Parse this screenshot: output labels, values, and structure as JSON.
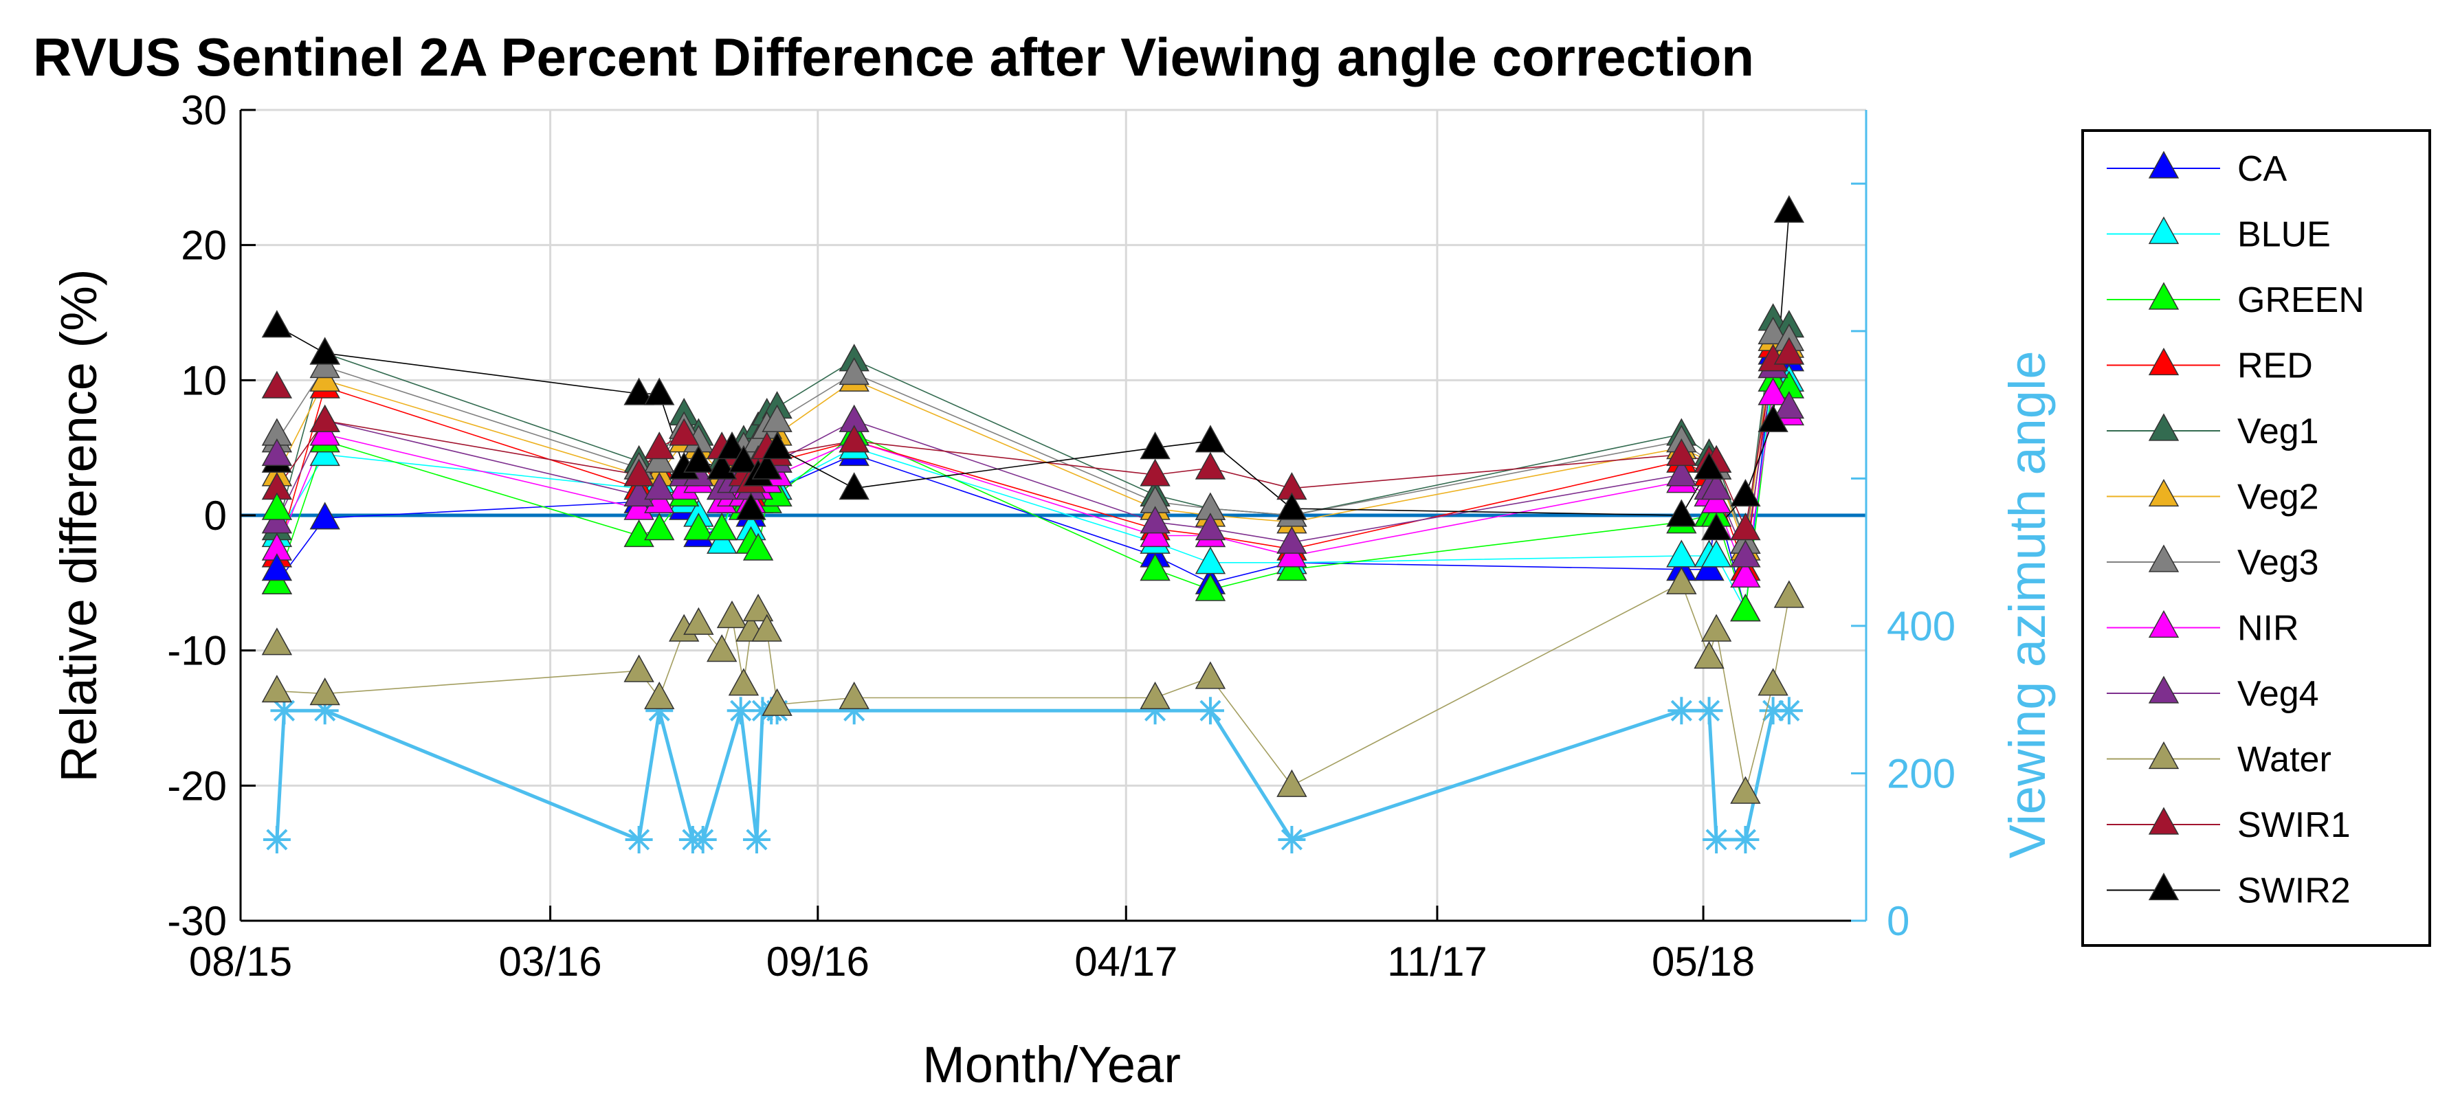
{
  "chart_data": {
    "type": "line",
    "title": "RVUS Sentinel 2A Percent Difference after Viewing angle correction",
    "xlabel": "Month/Year",
    "ylabel": "Relative difference (%)",
    "y2label": "Viewing azimuth angle",
    "xlim": [
      0,
      1118
    ],
    "ylim": [
      -30,
      30
    ],
    "y2lim": [
      0,
      1100
    ],
    "x_unit": "days since 2015-08-01",
    "x_ticks": [
      {
        "x": 0,
        "label": "08/15"
      },
      {
        "x": 213,
        "label": "03/16"
      },
      {
        "x": 397,
        "label": "09/16"
      },
      {
        "x": 609,
        "label": "04/17"
      },
      {
        "x": 823,
        "label": "11/17"
      },
      {
        "x": 1006,
        "label": "05/18"
      }
    ],
    "y_ticks": [
      -30,
      -20,
      -10,
      0,
      10,
      20,
      30
    ],
    "y2_ticks": [
      {
        "v": 0,
        "label": "0"
      },
      {
        "v": 200,
        "label": "200"
      },
      {
        "v": 400,
        "label": "400"
      },
      {
        "v": 600,
        "label": ""
      },
      {
        "v": 800,
        "label": ""
      },
      {
        "v": 1000,
        "label": ""
      }
    ],
    "grid": true,
    "zero_line": 0,
    "colors": {
      "zero_line": "#0072BD",
      "azimuth": "#4DBEEE",
      "axes": "#000000"
    },
    "dates": [
      25,
      58,
      274,
      288,
      305,
      315,
      331,
      338,
      346,
      351,
      356,
      362,
      369,
      422,
      629,
      667,
      723,
      991,
      1010,
      1015,
      1035,
      1054,
      1065
    ],
    "series": [
      {
        "name": "CA",
        "color": "#0000FF",
        "values": [
          -5,
          -0.2,
          1,
          2,
          0.5,
          -1.5,
          -1,
          1,
          1.5,
          0,
          1.5,
          2,
          2,
          4.5,
          -3,
          -5,
          -3.5,
          -4,
          -4,
          1,
          -7,
          12,
          11.5
        ]
      },
      {
        "name": "BLUE",
        "color": "#00FFFF",
        "values": [
          -1.5,
          4.5,
          2,
          2.5,
          1,
          0,
          -2,
          1.5,
          2,
          -1,
          1,
          2.5,
          2,
          5,
          -2,
          -3.5,
          -3.5,
          -3,
          -3,
          -3,
          -7,
          11,
          10
        ]
      },
      {
        "name": "GREEN",
        "color": "#00FF00",
        "values": [
          -5,
          5.5,
          -1.5,
          -1,
          1.5,
          -1,
          -1,
          1,
          0.5,
          -2,
          -2.5,
          1,
          1.5,
          6,
          -4,
          -5.5,
          -4,
          -0.5,
          0,
          0,
          -7,
          10,
          9.5
        ]
      },
      {
        "name": "RED",
        "color": "#FF0000",
        "values": [
          -3,
          9.5,
          2,
          3.5,
          3,
          4,
          2,
          3,
          2.5,
          1.5,
          3,
          3,
          4,
          5.5,
          -1,
          -1.5,
          -2.5,
          4,
          3,
          2,
          -4,
          12.5,
          12
        ]
      },
      {
        "name": "Veg1",
        "color": "#336B50",
        "values": [
          -1,
          12,
          4,
          4,
          7.5,
          6,
          4,
          5,
          5.5,
          5,
          6.5,
          7.5,
          8,
          11.5,
          1.5,
          0.5,
          0,
          6,
          4.5,
          4,
          -2,
          14.5,
          14
        ]
      },
      {
        "name": "Veg2",
        "color": "#EDB120",
        "values": [
          3,
          10,
          3,
          3,
          5.5,
          5,
          3,
          4,
          4.5,
          4,
          5,
          5.5,
          6,
          10,
          0.5,
          0,
          -0.5,
          5,
          4,
          3.5,
          -2.5,
          13,
          12.5
        ]
      },
      {
        "name": "Veg3",
        "color": "#808080",
        "values": [
          5.5,
          11,
          3.5,
          4,
          6.5,
          5.5,
          3.5,
          4.5,
          5,
          4.5,
          5.5,
          6.5,
          7,
          10.5,
          1,
          0.5,
          0,
          5.5,
          4,
          3.5,
          -2,
          13.5,
          13
        ]
      },
      {
        "name": "NIR",
        "color": "#FF00FF",
        "values": [
          -2.5,
          6,
          0.5,
          1,
          2,
          2.5,
          1,
          1.5,
          1.5,
          1,
          2,
          2.5,
          3,
          5.5,
          -1.5,
          -1.5,
          -3,
          2.5,
          1.5,
          1,
          -4.5,
          9,
          7.5
        ]
      },
      {
        "name": "Veg4",
        "color": "#7E2F8E",
        "values": [
          -0.5,
          7,
          1.5,
          2,
          3,
          3,
          2,
          2.5,
          2.5,
          2,
          3,
          3.5,
          4,
          7,
          -0.5,
          -1,
          -2,
          3,
          2,
          2,
          -3,
          11,
          8
        ]
      },
      {
        "name": "Water",
        "color": "#A39E60",
        "values": [
          -13,
          -13.2,
          -11.5,
          -13.5,
          -8.5,
          -8,
          -10,
          -7.5,
          -12.5,
          -8.5,
          -7,
          -8.5,
          -14,
          -13.5,
          -13.5,
          -12,
          -20,
          -5,
          -10.5,
          -8.5,
          -20.5,
          -12.5,
          -6
        ]
      },
      {
        "name": "SWIR1",
        "color": "#A2142F",
        "values": [
          2,
          7,
          3,
          5,
          6,
          4,
          5,
          4.5,
          3,
          2.5,
          4,
          5,
          4.5,
          5.5,
          3,
          3.5,
          2,
          4.5,
          4,
          4,
          -1,
          11.5,
          12
        ]
      },
      {
        "name": "SWIR2",
        "color": "#000000",
        "values": [
          14,
          12,
          9,
          9,
          3.5,
          4,
          3.5,
          5,
          4,
          0.5,
          3,
          3.5,
          5,
          2,
          5,
          5.5,
          0.5,
          0,
          3.5,
          -1,
          1.5,
          7,
          22.5
        ]
      }
    ],
    "extra_markers": [
      {
        "series": "CA",
        "x": 25,
        "y": -4
      },
      {
        "series": "GREEN",
        "x": 25,
        "y": 0.5
      },
      {
        "series": "SWIR2",
        "x": 25,
        "y": 4
      },
      {
        "series": "Water",
        "x": 25,
        "y": -9.5
      },
      {
        "series": "Veg3",
        "x": 25,
        "y": 6
      },
      {
        "series": "Veg4",
        "x": 25,
        "y": 4.5
      },
      {
        "series": "SWIR1",
        "x": 25,
        "y": 9.5
      }
    ],
    "azimuth_series": {
      "name": "Viewing azimuth angle",
      "marker": "asterisk",
      "x": [
        25,
        30,
        58,
        274,
        288,
        311,
        318,
        344,
        355,
        359,
        365,
        369,
        422,
        629,
        667,
        723,
        991,
        1010,
        1015,
        1035,
        1054,
        1065
      ],
      "values": [
        110,
        285,
        285,
        110,
        285,
        110,
        110,
        285,
        110,
        285,
        285,
        285,
        285,
        285,
        285,
        110,
        285,
        285,
        110,
        110,
        285,
        285
      ]
    },
    "legend": {
      "placement": "outside-right"
    }
  }
}
